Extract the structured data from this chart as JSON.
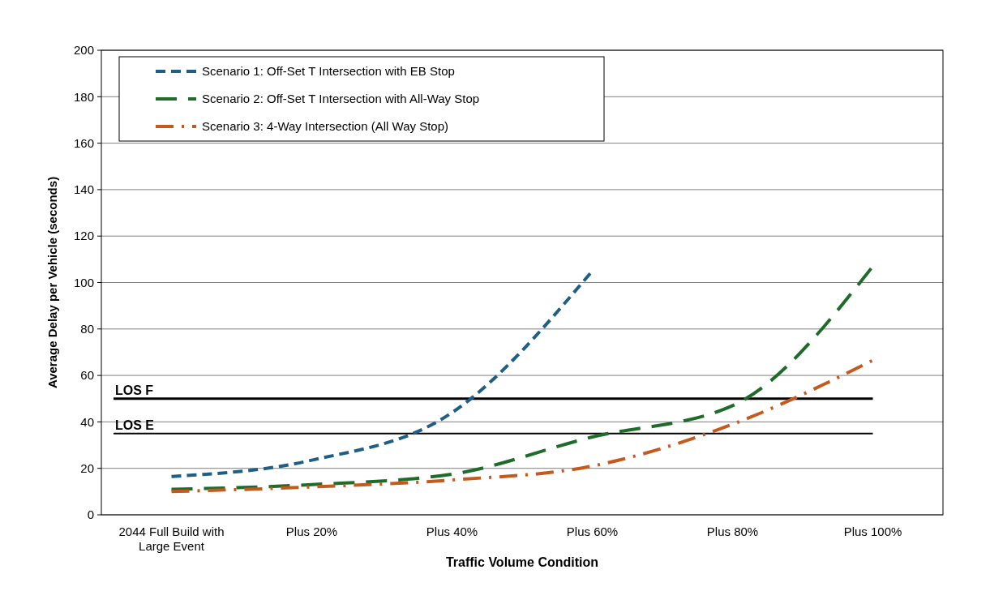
{
  "chart_data": {
    "type": "line",
    "xlabel": "Traffic Volume Condition",
    "ylabel": "Average Delay per Vehicle (seconds)",
    "categories": [
      "2044 Full Build with Large Event",
      "Plus 20%",
      "Plus 40%",
      "Plus 60%",
      "Plus 80%",
      "Plus 100%"
    ],
    "series": [
      {
        "name": "Scenario 1: Off-Set T Intersection with EB Stop",
        "color": "#1f5f84",
        "line_style": "dashed",
        "values": [
          16.5,
          23.5,
          44,
          105,
          null,
          null
        ]
      },
      {
        "name": "Scenario 2: Off-Set T Intersection with All-Way Stop",
        "color": "#1e6b2a",
        "line_style": "longdash",
        "values": [
          11,
          13,
          17.5,
          33.5,
          47,
          107
        ]
      },
      {
        "name": "Scenario 3: 4-Way Intersection (All Way Stop)",
        "color": "#c55a1f",
        "line_style": "dashdot",
        "values": [
          10,
          12,
          15,
          21,
          39,
          66.5
        ]
      }
    ],
    "ylim": [
      0,
      200
    ],
    "yticks": [
      0,
      20,
      40,
      60,
      80,
      100,
      120,
      140,
      160,
      180,
      200
    ],
    "grid": "y",
    "legend": "top left",
    "ref_lines": [
      {
        "axis": "y",
        "value": 50,
        "label": "LOS F",
        "color": "#000000"
      },
      {
        "axis": "y",
        "value": 35,
        "label": "LOS E",
        "color": "#000000"
      }
    ]
  }
}
